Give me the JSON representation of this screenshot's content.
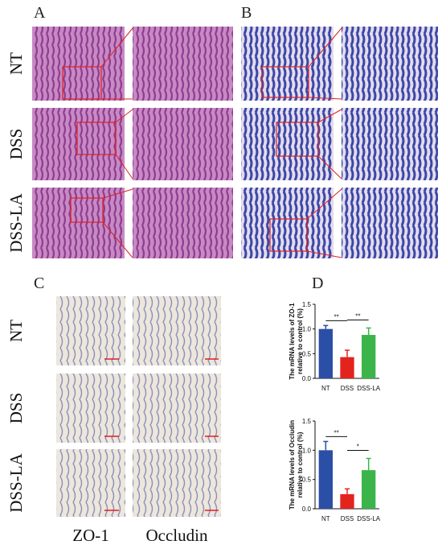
{
  "panel_labels": [
    "A",
    "B",
    "C",
    "D"
  ],
  "row_labels_ab": [
    "NT",
    "DSS",
    "DSS-LA"
  ],
  "row_labels_c": [
    "NT",
    "DSS",
    "DSS-LA"
  ],
  "column_labels_c": [
    "ZO-1",
    "Occludin"
  ],
  "chart_data": [
    {
      "type": "bar",
      "ylabel": [
        "The mRNA levels of ZO-1",
        "relative to control (%)"
      ],
      "categories": [
        "NT",
        "DSS",
        "DSS-LA"
      ],
      "values": [
        1.0,
        0.43,
        0.88
      ],
      "errors": [
        0.07,
        0.14,
        0.14
      ],
      "colors": [
        "#2b4fa6",
        "#e3241e",
        "#3bb54a"
      ],
      "ylim": [
        0,
        1.5
      ],
      "yticks": [
        {
          "value": 0,
          "label": "0.0"
        },
        {
          "value": 0.5,
          "label": "0.5"
        },
        {
          "value": 1,
          "label": "1.0"
        },
        {
          "value": 1.5,
          "label": "1.5"
        }
      ],
      "annotations": [
        {
          "text": "**",
          "between": [
            "NT",
            "DSS"
          ]
        },
        {
          "text": "**",
          "between": [
            "DSS",
            "DSS-LA"
          ]
        }
      ]
    },
    {
      "type": "bar",
      "ylabel": [
        "The mRNA levels of Occludin",
        "relative to control (%)"
      ],
      "categories": [
        "NT",
        "DSS",
        "DSS-LA"
      ],
      "values": [
        1.0,
        0.25,
        0.66
      ],
      "errors": [
        0.15,
        0.09,
        0.2
      ],
      "colors": [
        "#2b4fa6",
        "#e3241e",
        "#3bb54a"
      ],
      "ylim": [
        0,
        1.5
      ],
      "yticks": [
        {
          "value": 0,
          "label": "0.0"
        },
        {
          "value": 0.5,
          "label": "0.5"
        },
        {
          "value": 1,
          "label": "1.0"
        },
        {
          "value": 1.5,
          "label": "1.5"
        }
      ],
      "annotations": [
        {
          "text": "**",
          "between": [
            "NT",
            "DSS"
          ]
        },
        {
          "text": "*",
          "between": [
            "DSS",
            "DSS-LA"
          ]
        }
      ]
    }
  ]
}
